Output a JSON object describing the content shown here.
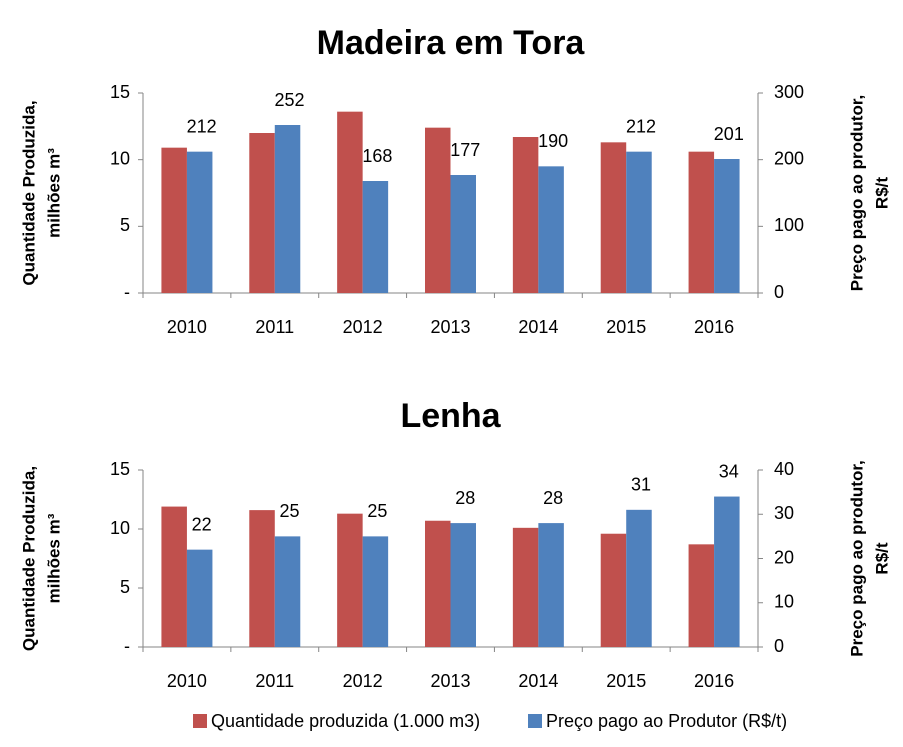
{
  "chart_data": [
    {
      "type": "bar",
      "title": "Madeira em Tora",
      "ylabel": [
        "Quantidade Produzida,",
        "milhões m³"
      ],
      "y2label": [
        "Preço pago ao produtor,",
        "R$/t"
      ],
      "categories": [
        "2010",
        "2011",
        "2012",
        "2013",
        "2014",
        "2015",
        "2016"
      ],
      "series": [
        {
          "name": "Quantidade produzida (1.000 m3)",
          "color": "#c0504d",
          "values": [
            10.9,
            12.0,
            13.6,
            12.4,
            11.7,
            11.3,
            10.6
          ]
        },
        {
          "name": "Preço pago ao Produtor (R$/t)",
          "color": "#4f81bd",
          "axis": "y2",
          "values": [
            212,
            252,
            168,
            177,
            190,
            212,
            201
          ]
        }
      ],
      "ylim": [
        0,
        15
      ],
      "yticks": [
        {
          "value": 0,
          "label": "-"
        },
        5,
        10,
        15
      ],
      "y2lim": [
        0,
        300
      ],
      "y2ticks": [
        0,
        100,
        200,
        300
      ]
    },
    {
      "type": "bar",
      "title": "Lenha",
      "ylabel": [
        "Quantidade Produzida,",
        "milhões m³"
      ],
      "y2label": [
        "Preço pago ao produtor,",
        "R$/t"
      ],
      "categories": [
        "2010",
        "2011",
        "2012",
        "2013",
        "2014",
        "2015",
        "2016"
      ],
      "series": [
        {
          "color": "#c0504d",
          "values": [
            11.9,
            11.6,
            11.3,
            10.7,
            10.1,
            9.6,
            8.7
          ]
        },
        {
          "color": "#4f81bd",
          "axis": "y2",
          "values": [
            22,
            25,
            25,
            28,
            28,
            31,
            34
          ]
        }
      ],
      "ylim": [
        0,
        15
      ],
      "yticks": [
        {
          "value": 0,
          "label": "-"
        },
        5,
        10,
        15
      ],
      "y2lim": [
        0,
        40
      ],
      "y2ticks": [
        0,
        10,
        20,
        30,
        40
      ]
    }
  ]
}
